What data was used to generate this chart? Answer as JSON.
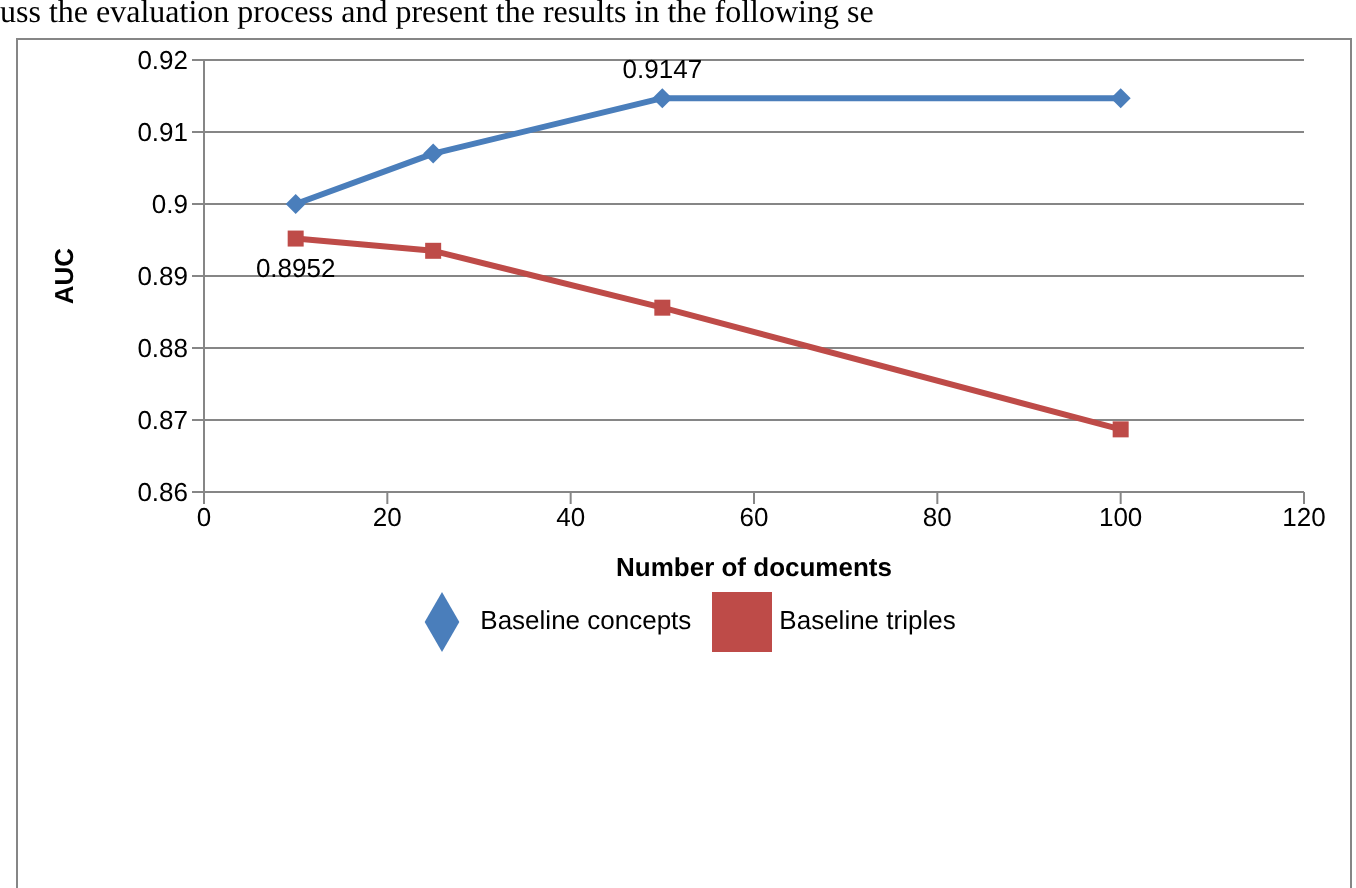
{
  "chart_data": {
    "type": "line",
    "xlabel": "Number of documents",
    "ylabel": "AUC",
    "annotations": [
      "uss the evaluation process and present the results in the following se"
    ],
    "series": [
      {
        "name": "Baseline concepts",
        "color": "#4a7ebb",
        "marker": "diamond",
        "x": [
          10,
          25,
          50,
          100
        ],
        "values": [
          0.9,
          0.907,
          0.9147,
          0.9147
        ],
        "value_labels": [
          null,
          null,
          "0.9147",
          null
        ]
      },
      {
        "name": "Baseline triples",
        "color": "#be4b48",
        "marker": "square",
        "x": [
          10,
          25,
          50,
          100
        ],
        "values": [
          0.8952,
          0.8935,
          0.8856,
          0.8687
        ],
        "value_labels": [
          "0.8952",
          null,
          null,
          null
        ]
      }
    ],
    "xlim": [
      0,
      120
    ],
    "xticks": [
      0,
      20,
      40,
      60,
      80,
      100,
      120
    ],
    "ylim": [
      0.86,
      0.92
    ],
    "yticks": [
      0.86,
      0.87,
      0.88,
      0.89,
      0.9,
      0.91,
      0.92
    ],
    "grid": "y",
    "legend": "bottom"
  }
}
